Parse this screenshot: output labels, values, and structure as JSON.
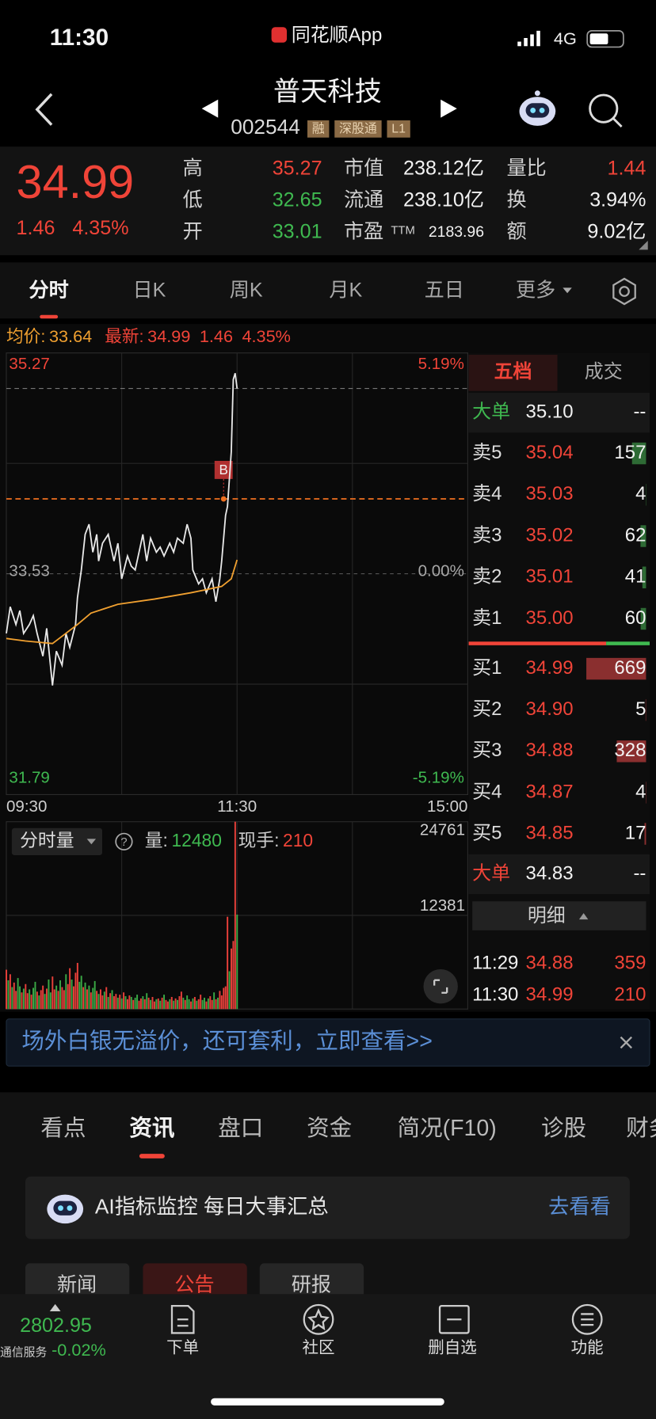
{
  "status_bar": {
    "time": "11:30",
    "app_name": "同花顺App",
    "network": "4G"
  },
  "header": {
    "stock_name": "普天科技",
    "stock_code": "002544",
    "tags": [
      "融",
      "深股通",
      "L1"
    ]
  },
  "quote": {
    "price": "34.99",
    "change": "1.46",
    "change_pct": "4.35%",
    "stats": [
      {
        "label": "高",
        "value": "35.27",
        "tone": "up"
      },
      {
        "label": "低",
        "value": "32.65",
        "tone": "down"
      },
      {
        "label": "开",
        "value": "33.01",
        "tone": "down"
      },
      {
        "label": "市值",
        "value": "238.12亿",
        "tone": "flat"
      },
      {
        "label": "流通",
        "value": "238.10亿",
        "tone": "flat"
      },
      {
        "label": "市盈",
        "sup": "TTM",
        "value": "2183.96",
        "tone": "flat"
      },
      {
        "label": "量比",
        "value": "1.44",
        "tone": "up"
      },
      {
        "label": "换",
        "value": "3.94%",
        "tone": "flat"
      },
      {
        "label": "额",
        "value": "9.02亿",
        "tone": "flat"
      }
    ]
  },
  "chart_tabs": {
    "items": [
      "分时",
      "日K",
      "周K",
      "月K",
      "五日",
      "更多"
    ],
    "active": 0
  },
  "info_bar": {
    "avg_label": "均价:",
    "avg": "33.64",
    "latest_label": "最新:",
    "latest": "34.99",
    "change": "1.46",
    "change_pct": "4.35%"
  },
  "chart_data": [
    {
      "type": "line",
      "xlim": [
        0,
        240
      ],
      "xticks": [
        {
          "value": 0,
          "label": "09:30"
        },
        {
          "value": 120,
          "label": "11:30"
        },
        {
          "value": 240,
          "label": "15:00"
        }
      ],
      "ylim": [
        31.79,
        35.27
      ],
      "yticks": [
        31.79,
        33.53,
        35.27
      ],
      "y2lim": [
        -5.19,
        5.19
      ],
      "y2ticks": [
        {
          "value": -5.19,
          "label": "-5.19%"
        },
        {
          "value": 0,
          "label": "0.00%"
        },
        {
          "value": 5.19,
          "label": "5.19%"
        }
      ],
      "grid": true,
      "series": [
        {
          "color": "#e8e8e8",
          "x": [
            0,
            2,
            5,
            7,
            9,
            12,
            14,
            16,
            19,
            21,
            24,
            26,
            29,
            31,
            33,
            36,
            37,
            39,
            41,
            43,
            45,
            47,
            48,
            50,
            53,
            56,
            58,
            60,
            63,
            65,
            67,
            70,
            71,
            73,
            75,
            78,
            80,
            82,
            85,
            87,
            89,
            92,
            94,
            96,
            97,
            100,
            102,
            104,
            107,
            109,
            111,
            112,
            114,
            115,
            117,
            118,
            119,
            120
          ],
          "values": [
            33.06,
            33.27,
            33.13,
            33.24,
            33.06,
            33.13,
            33.2,
            33.06,
            32.88,
            33.1,
            32.65,
            32.92,
            32.81,
            33.06,
            32.95,
            33.13,
            33.34,
            33.56,
            33.84,
            33.92,
            33.7,
            33.84,
            33.63,
            33.77,
            33.84,
            33.63,
            33.77,
            33.49,
            33.67,
            33.59,
            33.56,
            33.77,
            33.84,
            33.63,
            33.81,
            33.7,
            33.74,
            33.67,
            33.77,
            33.7,
            33.81,
            33.77,
            33.92,
            33.81,
            33.56,
            33.45,
            33.49,
            33.38,
            33.49,
            33.31,
            33.49,
            33.63,
            33.99,
            34.06,
            34.49,
            35.06,
            35.11,
            34.99
          ]
        },
        {
          "color": "#f0a030",
          "x": [
            0,
            10,
            24,
            37,
            44,
            58,
            77,
            96,
            112,
            117,
            120
          ],
          "values": [
            33.02,
            33.0,
            32.98,
            33.13,
            33.22,
            33.29,
            33.33,
            33.38,
            33.43,
            33.49,
            33.64
          ]
        }
      ],
      "trade_marker": {
        "label": "B",
        "x": 113,
        "value": 34.12,
        "color": "#f07020"
      }
    },
    {
      "type": "bar",
      "xlim": [
        0,
        240
      ],
      "ylim": [
        0,
        24761
      ],
      "yticks": [
        12381,
        24761
      ],
      "color_up": "#e8403a",
      "color_down": "#3aa845",
      "x": [
        0,
        1,
        2,
        3,
        4,
        5,
        6,
        7,
        8,
        9,
        10,
        11,
        12,
        13,
        14,
        15,
        16,
        17,
        18,
        19,
        20,
        21,
        22,
        23,
        24,
        25,
        26,
        27,
        28,
        29,
        30,
        31,
        32,
        33,
        34,
        35,
        36,
        37,
        38,
        39,
        40,
        41,
        42,
        43,
        44,
        45,
        46,
        47,
        48,
        49,
        50,
        51,
        52,
        53,
        54,
        55,
        56,
        57,
        58,
        59,
        60,
        61,
        62,
        63,
        64,
        65,
        66,
        67,
        68,
        69,
        70,
        71,
        72,
        73,
        74,
        75,
        76,
        77,
        78,
        79,
        80,
        81,
        82,
        83,
        84,
        85,
        86,
        87,
        88,
        89,
        90,
        91,
        92,
        93,
        94,
        95,
        96,
        97,
        98,
        99,
        100,
        101,
        102,
        103,
        104,
        105,
        106,
        107,
        108,
        109,
        110,
        111,
        112,
        113,
        114,
        115,
        116,
        117,
        118,
        119,
        120
      ],
      "values": [
        5200,
        3800,
        4600,
        2900,
        3500,
        2400,
        4100,
        3000,
        2200,
        2700,
        3300,
        2100,
        2600,
        1900,
        2800,
        3600,
        2300,
        1800,
        2500,
        3100,
        2000,
        2700,
        3900,
        2200,
        4300,
        2600,
        3100,
        2400,
        3800,
        2900,
        2500,
        4600,
        3300,
        5400,
        3900,
        3000,
        4800,
        6100,
        3600,
        4400,
        2900,
        3500,
        2600,
        3100,
        2200,
        2800,
        3700,
        2400,
        2000,
        2600,
        1800,
        2300,
        2900,
        1600,
        2100,
        2500,
        1700,
        2000,
        1500,
        1900,
        1400,
        2200,
        1700,
        1300,
        1800,
        1600,
        1200,
        1500,
        1900,
        1100,
        1400,
        1700,
        1300,
        2100,
        1500,
        1200,
        1600,
        1000,
        1300,
        1400,
        1100,
        1500,
        1900,
        1200,
        1000,
        1300,
        1600,
        1100,
        1400,
        1200,
        1700,
        2300,
        1500,
        1200,
        1800,
        1300,
        1000,
        1400,
        1600,
        1100,
        1300,
        1900,
        1200,
        1500,
        1000,
        1400,
        1700,
        1200,
        2200,
        1300,
        1500,
        2400,
        1800,
        2800,
        3000,
        12200,
        5000,
        8000,
        9000,
        24761,
        12480
      ],
      "up": [
        1,
        0,
        1,
        0,
        1,
        1,
        0,
        0,
        1,
        0,
        1,
        1,
        0,
        1,
        0,
        0,
        1,
        0,
        1,
        1,
        0,
        1,
        0,
        0,
        1,
        1,
        0,
        1,
        0,
        1,
        1,
        0,
        1,
        1,
        0,
        1,
        1,
        1,
        0,
        0,
        1,
        0,
        1,
        0,
        1,
        0,
        0,
        1,
        0,
        1,
        1,
        0,
        1,
        0,
        1,
        0,
        1,
        1,
        0,
        1,
        0,
        1,
        0,
        1,
        1,
        0,
        1,
        0,
        0,
        1,
        1,
        0,
        1,
        0,
        1,
        0,
        1,
        1,
        0,
        1,
        0,
        1,
        0,
        1,
        1,
        0,
        1,
        0,
        1,
        0,
        1,
        1,
        0,
        1,
        0,
        0,
        1,
        0,
        1,
        0,
        1,
        1,
        0,
        0,
        1,
        0,
        1,
        1,
        0,
        1,
        0,
        1,
        1,
        1,
        1,
        1,
        0,
        1,
        1,
        1,
        0
      ]
    }
  ],
  "volume_info": {
    "selector": "分时量",
    "vol_label": "量:",
    "vol": "12480",
    "hand_label": "现手:",
    "hand": "210"
  },
  "order_book": {
    "tabs": [
      "五档",
      "成交"
    ],
    "active": 0,
    "big_sell": {
      "label": "大单",
      "price": "35.10",
      "vol": "--"
    },
    "asks": [
      {
        "label": "卖5",
        "price": "35.04",
        "vol": 157
      },
      {
        "label": "卖4",
        "price": "35.03",
        "vol": 4
      },
      {
        "label": "卖3",
        "price": "35.02",
        "vol": 62
      },
      {
        "label": "卖2",
        "price": "35.01",
        "vol": 41
      },
      {
        "label": "卖1",
        "price": "35.00",
        "vol": 60
      }
    ],
    "bids": [
      {
        "label": "买1",
        "price": "34.99",
        "vol": 669
      },
      {
        "label": "买2",
        "price": "34.90",
        "vol": 5
      },
      {
        "label": "买3",
        "price": "34.88",
        "vol": 328
      },
      {
        "label": "买4",
        "price": "34.87",
        "vol": 4
      },
      {
        "label": "买5",
        "price": "34.85",
        "vol": 17
      }
    ],
    "big_buy": {
      "label": "大单",
      "price": "34.83",
      "vol": "--"
    },
    "detail_button": "明细",
    "trades": [
      {
        "time": "11:29",
        "price": "34.88",
        "vol": "359"
      },
      {
        "time": "11:30",
        "price": "34.99",
        "vol": "210"
      }
    ]
  },
  "banner": {
    "text": "场外白银无溢价，还可套利，立即查看>>"
  },
  "content_tabs": {
    "items": [
      "看点",
      "资讯",
      "盘口",
      "资金",
      "简况(F10)",
      "诊股",
      "财务"
    ],
    "active": 1
  },
  "ai_card": {
    "text": "AI指标监控 每日大事汇总",
    "action": "去看看"
  },
  "sub_tabs": {
    "items": [
      "新闻",
      "公告",
      "研报"
    ],
    "active": 1
  },
  "bottom_bar": {
    "index_value": "2802.95",
    "index_name": "通信服务",
    "index_change": "-0.02%",
    "items": [
      "下单",
      "社区",
      "删自选",
      "功能"
    ]
  }
}
